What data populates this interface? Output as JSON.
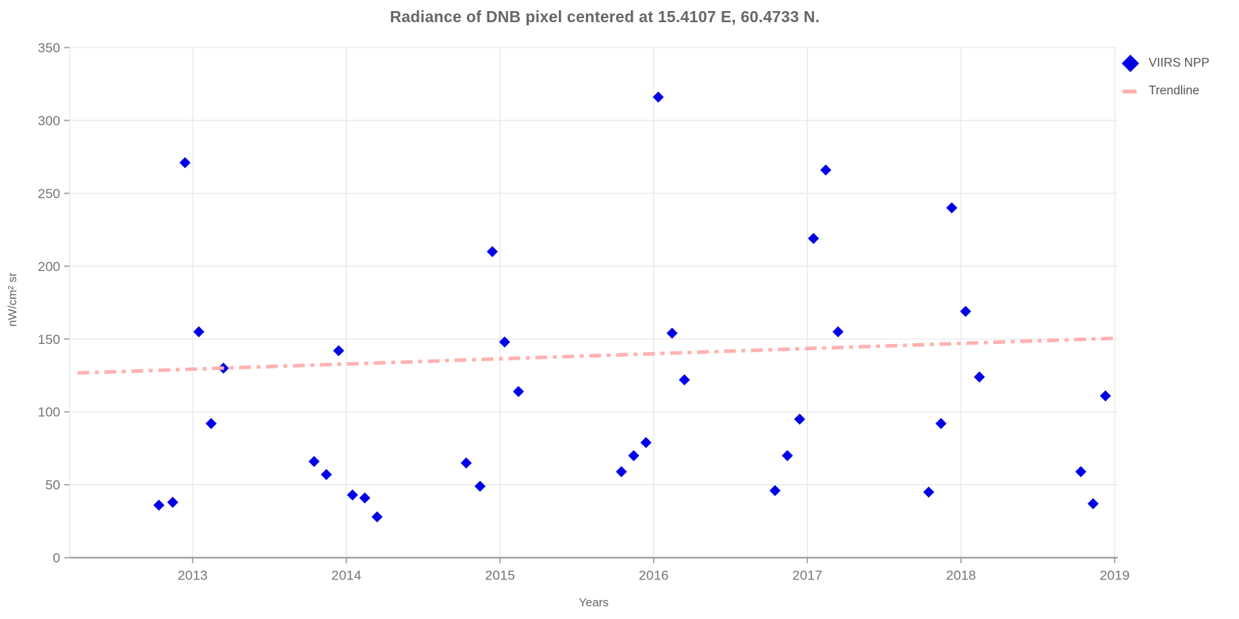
{
  "title": "Radiance of DNB pixel centered at 15.4107 E, 60.4733 N.",
  "legend": {
    "items": [
      {
        "label": "VIIRS NPP",
        "marker": "diamond",
        "color": "#0000E6"
      },
      {
        "label": "Trendline",
        "marker": "dash",
        "color": "#FFB1B1"
      }
    ]
  },
  "chart_data": {
    "type": "scatter",
    "title": "Radiance of DNB pixel centered at 15.4107 E, 60.4733 N.",
    "xlabel": "Years",
    "ylabel": "nW/cm² sr",
    "xlim": [
      2012.2,
      2019.02
    ],
    "ylim": [
      0,
      350
    ],
    "x_ticks": [
      2013,
      2014,
      2015,
      2016,
      2017,
      2018,
      2019
    ],
    "y_ticks": [
      0,
      50,
      100,
      150,
      200,
      250,
      300,
      350
    ],
    "grid": true,
    "legend_position": "outside-top-right",
    "colors": {
      "points": "#0000E6",
      "trendline": "#FFB1B1",
      "gridline": "#E9E9E9",
      "axis": "#9A9A9A",
      "tick_label": "#757575",
      "title": "#666666"
    },
    "series": [
      {
        "name": "VIIRS NPP",
        "type": "scatter",
        "marker": "diamond",
        "color": "#0000E6",
        "points": [
          [
            2012.78,
            36
          ],
          [
            2012.87,
            38
          ],
          [
            2012.95,
            271
          ],
          [
            2013.04,
            155
          ],
          [
            2013.12,
            92
          ],
          [
            2013.2,
            130
          ],
          [
            2013.79,
            66
          ],
          [
            2013.87,
            57
          ],
          [
            2013.95,
            142
          ],
          [
            2014.04,
            43
          ],
          [
            2014.12,
            41
          ],
          [
            2014.2,
            28
          ],
          [
            2014.78,
            65
          ],
          [
            2014.87,
            49
          ],
          [
            2014.95,
            210
          ],
          [
            2015.03,
            148
          ],
          [
            2015.12,
            114
          ],
          [
            2015.79,
            59
          ],
          [
            2015.87,
            70
          ],
          [
            2015.95,
            79
          ],
          [
            2016.03,
            316
          ],
          [
            2016.12,
            154
          ],
          [
            2016.2,
            122
          ],
          [
            2016.79,
            46
          ],
          [
            2016.87,
            70
          ],
          [
            2016.95,
            95
          ],
          [
            2017.04,
            219
          ],
          [
            2017.12,
            266
          ],
          [
            2017.2,
            155
          ],
          [
            2017.79,
            45
          ],
          [
            2017.87,
            92
          ],
          [
            2017.94,
            240
          ],
          [
            2018.03,
            169
          ],
          [
            2018.12,
            124
          ],
          [
            2018.78,
            59
          ],
          [
            2018.86,
            37
          ],
          [
            2018.94,
            111
          ]
        ]
      },
      {
        "name": "Trendline",
        "type": "line",
        "dash": "dashdot",
        "color": "#FFB1B1",
        "points": [
          [
            2012.25,
            126.7
          ],
          [
            2018.99,
            150.5
          ]
        ]
      }
    ]
  }
}
